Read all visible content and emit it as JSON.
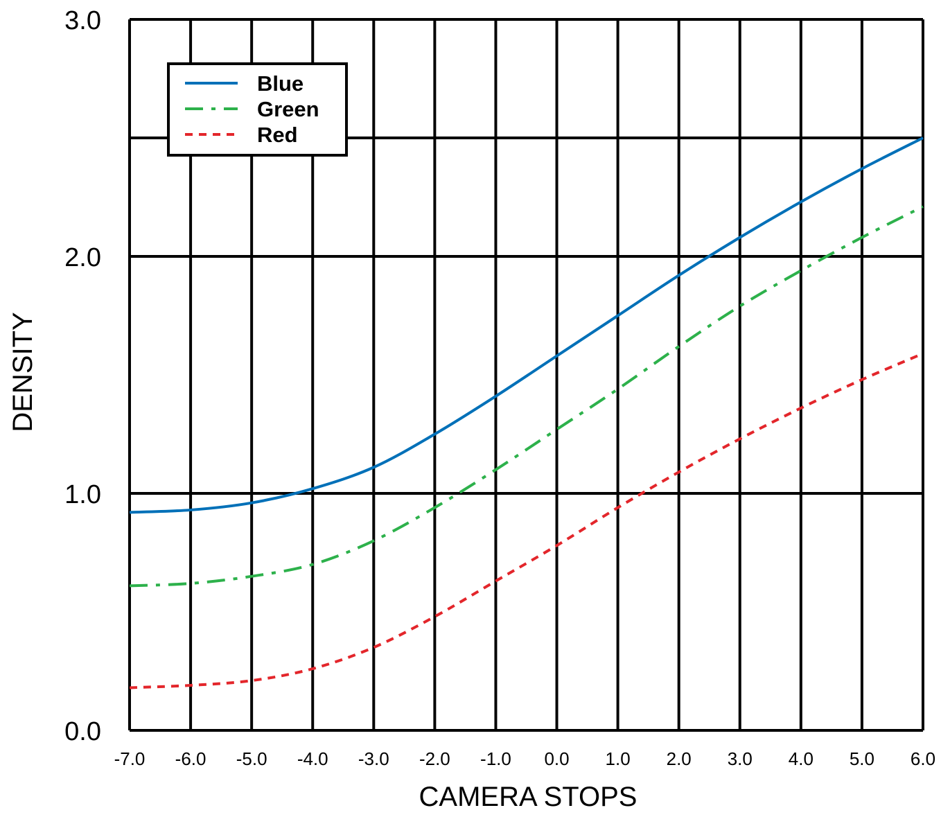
{
  "chart_data": {
    "type": "line",
    "title": "",
    "xlabel": "CAMERA STOPS",
    "ylabel": "DENSITY",
    "xlim": [
      -7.0,
      6.0
    ],
    "ylim": [
      0.0,
      3.0
    ],
    "x_ticks": [
      "-7.0",
      "-6.0",
      "-5.0",
      "-4.0",
      "-3.0",
      "-2.0",
      "-1.0",
      "0.0",
      "1.0",
      "2.0",
      "3.0",
      "4.0",
      "5.0",
      "6.0"
    ],
    "y_ticks": [
      "0.0",
      "1.0",
      "2.0",
      "3.0"
    ],
    "y_grid": [
      0.0,
      1.0,
      2.0,
      2.5,
      3.0
    ],
    "grid": true,
    "legend_position": "top-left",
    "series": [
      {
        "name": "Blue",
        "color": "#0070b8",
        "style": "solid",
        "x": [
          -7,
          -6,
          -5,
          -4,
          -3,
          -2,
          -1,
          0,
          1,
          2,
          3,
          4,
          5,
          6
        ],
        "y": [
          0.92,
          0.93,
          0.96,
          1.02,
          1.11,
          1.25,
          1.41,
          1.58,
          1.75,
          1.92,
          2.08,
          2.23,
          2.37,
          2.5
        ]
      },
      {
        "name": "Green",
        "color": "#2db14b",
        "style": "dashdot",
        "x": [
          -7,
          -6,
          -5,
          -4,
          -3,
          -2,
          -1,
          0,
          1,
          2,
          3,
          4,
          5,
          6
        ],
        "y": [
          0.61,
          0.62,
          0.65,
          0.7,
          0.8,
          0.94,
          1.1,
          1.27,
          1.44,
          1.62,
          1.79,
          1.94,
          2.08,
          2.21
        ]
      },
      {
        "name": "Red",
        "color": "#e3262b",
        "style": "dotted",
        "x": [
          -7,
          -6,
          -5,
          -4,
          -3,
          -2,
          -1,
          0,
          1,
          2,
          3,
          4,
          5,
          6
        ],
        "y": [
          0.18,
          0.19,
          0.21,
          0.26,
          0.35,
          0.48,
          0.63,
          0.78,
          0.94,
          1.09,
          1.23,
          1.36,
          1.48,
          1.59
        ]
      }
    ]
  }
}
